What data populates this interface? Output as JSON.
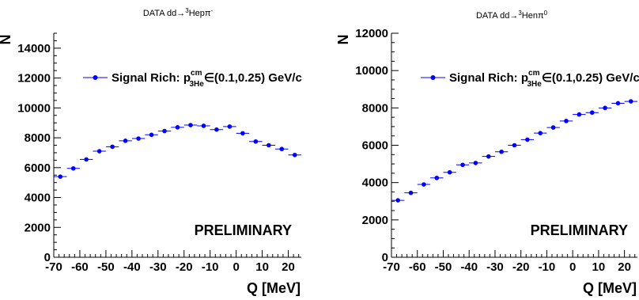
{
  "chart_data": [
    {
      "type": "scatter",
      "title": {
        "prefix": "DATA dd",
        "arrow": "→",
        "sup_left": "3",
        "body": "Hepπ",
        "sup_right": "-"
      },
      "xlabel": "Q [MeV]",
      "ylabel": "N",
      "xlim": [
        -70,
        25
      ],
      "ylim": [
        0,
        15000
      ],
      "xticks": [
        -70,
        -60,
        -50,
        -40,
        -30,
        -20,
        -10,
        0,
        10,
        20
      ],
      "yticks": [
        0,
        2000,
        4000,
        6000,
        8000,
        10000,
        12000,
        14000
      ],
      "xbin_width": 5,
      "legend": {
        "text": "Signal Rich: p",
        "sup": "cm",
        "sub": "3He",
        "rest": "∈(0.1,0.25) GeV/c",
        "placement": "top-left"
      },
      "annotation": "PRELIMINARY",
      "marker_color": "#0000ff",
      "series": [
        {
          "x": [
            -67.5,
            -62.5,
            -57.5,
            -52.5,
            -47.5,
            -42.5,
            -37.5,
            -32.5,
            -27.5,
            -22.5,
            -17.5,
            -12.5,
            -7.5,
            -2.5,
            2.5,
            7.5,
            12.5,
            17.5,
            22.5
          ],
          "y": [
            5400,
            5950,
            6550,
            7100,
            7400,
            7800,
            7950,
            8200,
            8450,
            8700,
            8850,
            8800,
            8550,
            8750,
            8300,
            7750,
            7500,
            7250,
            6850
          ]
        }
      ]
    },
    {
      "type": "scatter",
      "title": {
        "prefix": "DATA dd",
        "arrow": "→",
        "sup_left": "3",
        "body": "Henπ",
        "sup_right": "0"
      },
      "xlabel": "Q [MeV]",
      "ylabel": "N",
      "xlim": [
        -70,
        25
      ],
      "ylim": [
        0,
        12000
      ],
      "xticks": [
        -70,
        -60,
        -50,
        -40,
        -30,
        -20,
        -10,
        0,
        10,
        20
      ],
      "yticks": [
        0,
        2000,
        4000,
        6000,
        8000,
        10000,
        12000
      ],
      "xbin_width": 5,
      "legend": {
        "text": "Signal Rich: p",
        "sup": "cm",
        "sub": "3He",
        "rest": "∈(0.1,0.25) GeV/c",
        "placement": "top-left"
      },
      "annotation": "PRELIMINARY",
      "marker_color": "#0000ff",
      "series": [
        {
          "x": [
            -67.5,
            -62.5,
            -57.5,
            -52.5,
            -47.5,
            -42.5,
            -37.5,
            -32.5,
            -27.5,
            -22.5,
            -17.5,
            -12.5,
            -7.5,
            -2.5,
            2.5,
            7.5,
            12.5,
            17.5,
            22.5
          ],
          "y": [
            3050,
            3450,
            3900,
            4250,
            4550,
            4950,
            5050,
            5400,
            5650,
            6000,
            6300,
            6650,
            6950,
            7300,
            7650,
            7750,
            8000,
            8250,
            8350
          ]
        }
      ]
    }
  ]
}
